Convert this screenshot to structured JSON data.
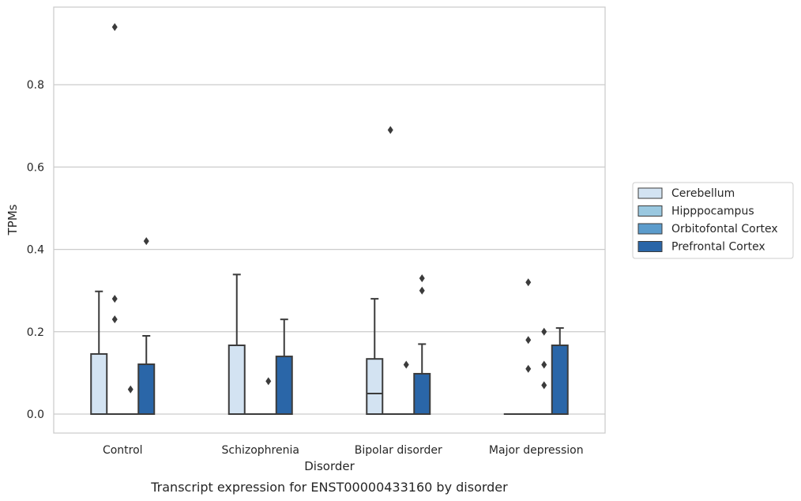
{
  "chart_data": {
    "type": "box",
    "title": "",
    "caption": "Transcript expression for ENST00000433160 by disorder",
    "xlabel": "Disorder",
    "ylabel": "TPMs",
    "ylim": [
      -0.045,
      0.99
    ],
    "yticks": [
      0.0,
      0.2,
      0.4,
      0.6,
      0.8
    ],
    "ytick_labels": [
      "0.0",
      "0.2",
      "0.4",
      "0.6",
      "0.8"
    ],
    "grid": "horizontal",
    "legend_placement": "right",
    "categories": [
      "Control",
      "Schizophrenia",
      "Bipolar disorder",
      "Major depression"
    ],
    "series": [
      {
        "name": "Cerebellum",
        "color": "#d3e3f2",
        "boxes": [
          {
            "q1": 0.0,
            "median": 0.0,
            "q3": 0.146,
            "whisker_low": 0.0,
            "whisker_high": 0.298,
            "outliers": []
          },
          {
            "q1": 0.0,
            "median": 0.0,
            "q3": 0.167,
            "whisker_low": 0.0,
            "whisker_high": 0.339,
            "outliers": []
          },
          {
            "q1": 0.0,
            "median": 0.05,
            "q3": 0.134,
            "whisker_low": 0.0,
            "whisker_high": 0.28,
            "outliers": []
          },
          {
            "q1": 0.0,
            "median": 0.0,
            "q3": 0.0,
            "whisker_low": 0.0,
            "whisker_high": 0.0,
            "outliers": []
          }
        ]
      },
      {
        "name": "Hipppocampus",
        "color": "#9ac8e0",
        "boxes": [
          {
            "q1": 0.0,
            "median": 0.0,
            "q3": 0.0,
            "whisker_low": 0.0,
            "whisker_high": 0.0,
            "outliers": [
              0.94,
              0.28,
              0.23
            ]
          },
          {
            "q1": 0.0,
            "median": 0.0,
            "q3": 0.0,
            "whisker_low": 0.0,
            "whisker_high": 0.0,
            "outliers": []
          },
          {
            "q1": 0.0,
            "median": 0.0,
            "q3": 0.0,
            "whisker_low": 0.0,
            "whisker_high": 0.0,
            "outliers": [
              0.69
            ]
          },
          {
            "q1": 0.0,
            "median": 0.0,
            "q3": 0.0,
            "whisker_low": 0.0,
            "whisker_high": 0.0,
            "outliers": [
              0.32,
              0.18,
              0.11
            ]
          }
        ]
      },
      {
        "name": "Orbitofontal Cortex",
        "color": "#5c9ccc",
        "boxes": [
          {
            "q1": 0.0,
            "median": 0.0,
            "q3": 0.0,
            "whisker_low": 0.0,
            "whisker_high": 0.0,
            "outliers": [
              0.06
            ]
          },
          {
            "q1": 0.0,
            "median": 0.0,
            "q3": 0.0,
            "whisker_low": 0.0,
            "whisker_high": 0.0,
            "outliers": [
              0.08
            ]
          },
          {
            "q1": 0.0,
            "median": 0.0,
            "q3": 0.0,
            "whisker_low": 0.0,
            "whisker_high": 0.0,
            "outliers": [
              0.12
            ]
          },
          {
            "q1": 0.0,
            "median": 0.0,
            "q3": 0.0,
            "whisker_low": 0.0,
            "whisker_high": 0.0,
            "outliers": [
              0.2,
              0.12,
              0.07
            ]
          }
        ]
      },
      {
        "name": "Prefrontal Cortex",
        "color": "#2a66a8",
        "boxes": [
          {
            "q1": 0.0,
            "median": 0.0,
            "q3": 0.121,
            "whisker_low": 0.0,
            "whisker_high": 0.19,
            "outliers": [
              0.42
            ]
          },
          {
            "q1": 0.0,
            "median": 0.0,
            "q3": 0.14,
            "whisker_low": 0.0,
            "whisker_high": 0.23,
            "outliers": []
          },
          {
            "q1": 0.0,
            "median": 0.0,
            "q3": 0.098,
            "whisker_low": 0.0,
            "whisker_high": 0.17,
            "outliers": [
              0.33,
              0.3
            ]
          },
          {
            "q1": 0.0,
            "median": 0.0,
            "q3": 0.167,
            "whisker_low": 0.0,
            "whisker_high": 0.209,
            "outliers": []
          }
        ]
      }
    ]
  }
}
